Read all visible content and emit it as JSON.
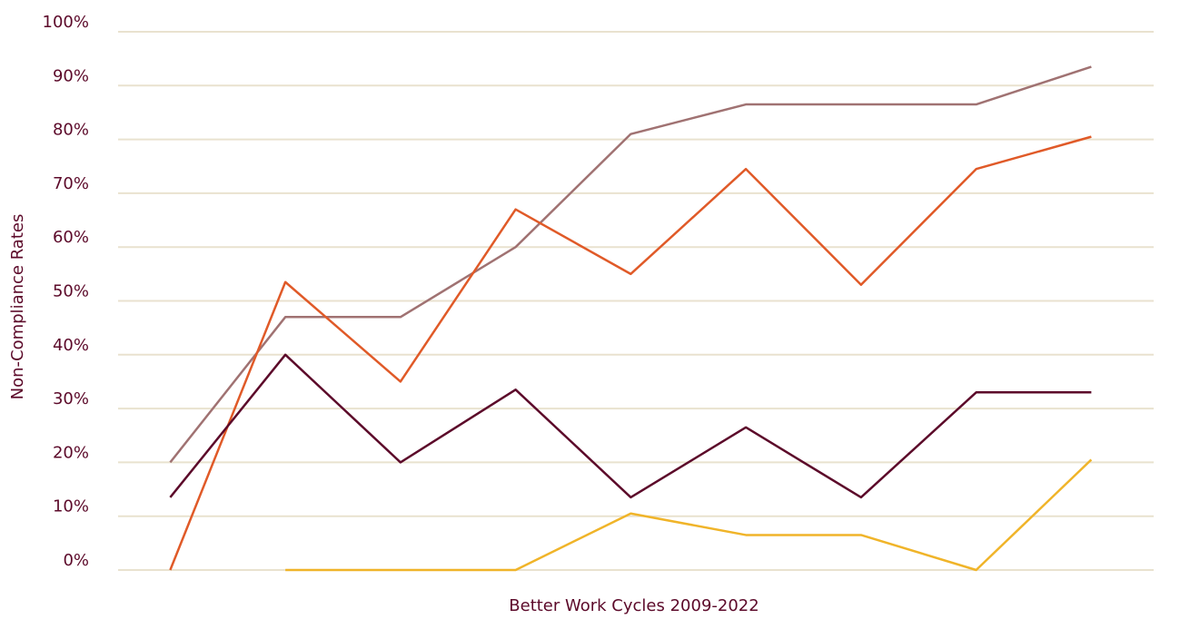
{
  "chart_data": {
    "type": "line",
    "x_label": "Better Work Cycles 2009-2022",
    "y_label": "Non-Compliance Rates",
    "categories": [
      null,
      null,
      null,
      null,
      null,
      null,
      null,
      null,
      null
    ],
    "series": [
      {
        "color": "#a07272",
        "values": [
          20,
          47,
          47,
          60,
          81,
          86.5,
          86.5,
          86.5,
          93.5
        ]
      },
      {
        "color": "#e05a28",
        "values": [
          0,
          53.5,
          35,
          67,
          55,
          74.5,
          53,
          74.5,
          80.5
        ]
      },
      {
        "color": "#5c0a2a",
        "values": [
          13.5,
          40,
          20,
          33.5,
          13.5,
          26.5,
          13.5,
          33,
          33
        ]
      },
      {
        "color": "#f0b429",
        "values": [
          null,
          0,
          0,
          0,
          10.5,
          6.5,
          6.5,
          0,
          20.5
        ]
      }
    ],
    "ylim": [
      0,
      100
    ],
    "yticks": [
      {
        "value": 0,
        "label": "0%"
      },
      {
        "value": 10,
        "label": "10%"
      },
      {
        "value": 20,
        "label": "20%"
      },
      {
        "value": 30,
        "label": "30%"
      },
      {
        "value": 40,
        "label": "40%"
      },
      {
        "value": 50,
        "label": "50%"
      },
      {
        "value": 60,
        "label": "60%"
      },
      {
        "value": 70,
        "label": "70%"
      },
      {
        "value": 80,
        "label": "80%"
      },
      {
        "value": 90,
        "label": "90%"
      },
      {
        "value": 100,
        "label": "100%"
      }
    ],
    "grid": true
  }
}
